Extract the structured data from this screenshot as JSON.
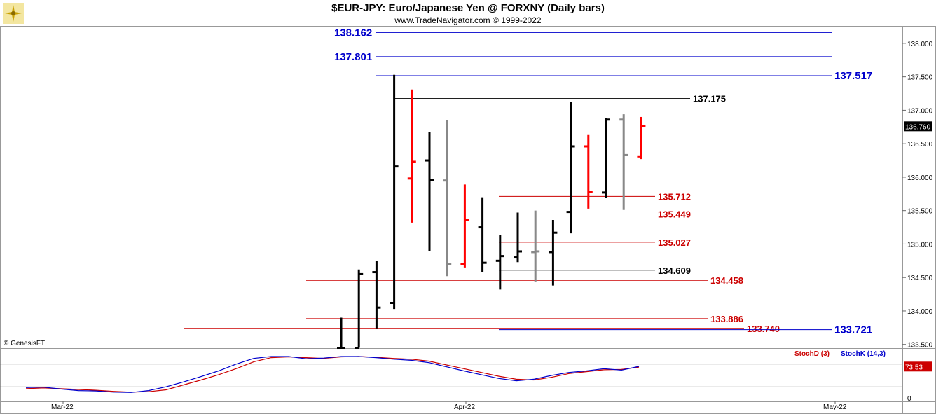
{
  "header": {
    "title": "$EUR-JPY:  Euro/Japanese Yen @ FORXNY  (Daily bars)",
    "subtitle": "www.TradeNavigator.com © 1999-2022",
    "copyright": "© GenesisFT"
  },
  "colors": {
    "up": "#000000",
    "down": "#ff0000",
    "neutral": "#888888",
    "blue_level": "#0000cc",
    "red_level": "#cc0000",
    "black_level": "#000000",
    "stochD": "#cc0000",
    "stochK": "#0000cc"
  },
  "chart_data": [
    {
      "type": "ohlc",
      "title": "$EUR-JPY:  Euro/Japanese Yen @ FORXNY  (Daily bars)",
      "ylim": [
        133.45,
        138.25
      ],
      "y_ticks": [
        "133.500",
        "134.000",
        "134.500",
        "135.000",
        "135.500",
        "136.000",
        "136.500",
        "137.000",
        "137.500",
        "138.000"
      ],
      "last_price": "136.760",
      "bars": [
        {
          "o": 133.45,
          "h": 133.9,
          "l": 133.45,
          "c": 133.45,
          "color": "up"
        },
        {
          "o": 133.45,
          "h": 134.62,
          "l": 133.45,
          "c": 134.55,
          "color": "up"
        },
        {
          "o": 134.58,
          "h": 134.75,
          "l": 133.74,
          "c": 134.05,
          "color": "up"
        },
        {
          "o": 134.12,
          "h": 137.53,
          "l": 134.03,
          "c": 136.16,
          "color": "up"
        },
        {
          "o": 135.98,
          "h": 137.31,
          "l": 135.32,
          "c": 136.23,
          "color": "down"
        },
        {
          "o": 136.25,
          "h": 136.67,
          "l": 134.89,
          "c": 135.96,
          "color": "up"
        },
        {
          "o": 135.95,
          "h": 136.85,
          "l": 134.52,
          "c": 134.7,
          "color": "neutral"
        },
        {
          "o": 134.7,
          "h": 135.89,
          "l": 134.65,
          "c": 135.36,
          "color": "down"
        },
        {
          "o": 135.25,
          "h": 135.7,
          "l": 134.58,
          "c": 134.72,
          "color": "up"
        },
        {
          "o": 134.75,
          "h": 135.13,
          "l": 134.32,
          "c": 134.82,
          "color": "up"
        },
        {
          "o": 134.8,
          "h": 135.47,
          "l": 134.73,
          "c": 134.89,
          "color": "up"
        },
        {
          "o": 134.88,
          "h": 135.5,
          "l": 134.44,
          "c": 134.89,
          "color": "neutral"
        },
        {
          "o": 134.88,
          "h": 135.36,
          "l": 134.38,
          "c": 135.17,
          "color": "up"
        },
        {
          "o": 135.48,
          "h": 137.12,
          "l": 135.16,
          "c": 136.46,
          "color": "up"
        },
        {
          "o": 136.46,
          "h": 136.63,
          "l": 135.53,
          "c": 135.78,
          "color": "down"
        },
        {
          "o": 135.77,
          "h": 136.88,
          "l": 135.69,
          "c": 136.86,
          "color": "up"
        },
        {
          "o": 136.86,
          "h": 136.94,
          "l": 135.51,
          "c": 136.33,
          "color": "neutral"
        },
        {
          "o": 136.31,
          "h": 136.9,
          "l": 136.27,
          "c": 136.76,
          "color": "down"
        }
      ],
      "levels": [
        {
          "value": 138.162,
          "label": "138.162",
          "color": "blue_level",
          "label_pos": "left"
        },
        {
          "value": 137.801,
          "label": "137.801",
          "color": "blue_level",
          "label_pos": "left"
        },
        {
          "value": 137.517,
          "label": "137.517",
          "color": "blue_level",
          "label_pos": "right"
        },
        {
          "value": 137.175,
          "label": "137.175",
          "color": "black_level",
          "label_pos": "right"
        },
        {
          "value": 135.712,
          "label": "135.712",
          "color": "red_level",
          "label_pos": "right"
        },
        {
          "value": 135.449,
          "label": "135.449",
          "color": "red_level",
          "label_pos": "right"
        },
        {
          "value": 135.027,
          "label": "135.027",
          "color": "red_level",
          "label_pos": "right"
        },
        {
          "value": 134.609,
          "label": "134.609",
          "color": "black_level",
          "label_pos": "right"
        },
        {
          "value": 134.458,
          "label": "134.458",
          "color": "red_level",
          "label_pos": "right"
        },
        {
          "value": 133.886,
          "label": "133.886",
          "color": "red_level",
          "label_pos": "right"
        },
        {
          "value": 133.74,
          "label": "133.740",
          "color": "red_level",
          "label_pos": "right"
        },
        {
          "value": 133.721,
          "label": "133.721",
          "color": "blue_level",
          "label_pos": "right"
        }
      ],
      "x_labels": [
        "Mar-22",
        "Apr-22",
        "May-22"
      ]
    },
    {
      "type": "line",
      "series": [
        {
          "name": "StochD (3)",
          "color": "stochD",
          "values": [
            15,
            17,
            15,
            13,
            11,
            8,
            6,
            7,
            12,
            25,
            38,
            52,
            68,
            86,
            97,
            99,
            97,
            95,
            99,
            100,
            98,
            95,
            93,
            88,
            78,
            68,
            58,
            48,
            40,
            38,
            45,
            55,
            60,
            65,
            66,
            72
          ]
        },
        {
          "name": "StochK (14,3)",
          "color": "stochK",
          "values": [
            18,
            19,
            14,
            10,
            9,
            6,
            5,
            10,
            20,
            33,
            47,
            62,
            80,
            95,
            100,
            100,
            94,
            96,
            100,
            100,
            97,
            93,
            90,
            84,
            73,
            62,
            52,
            42,
            36,
            40,
            50,
            58,
            62,
            68,
            64,
            74
          ]
        }
      ],
      "last_value": "73.53",
      "y_tick": "0"
    }
  ]
}
